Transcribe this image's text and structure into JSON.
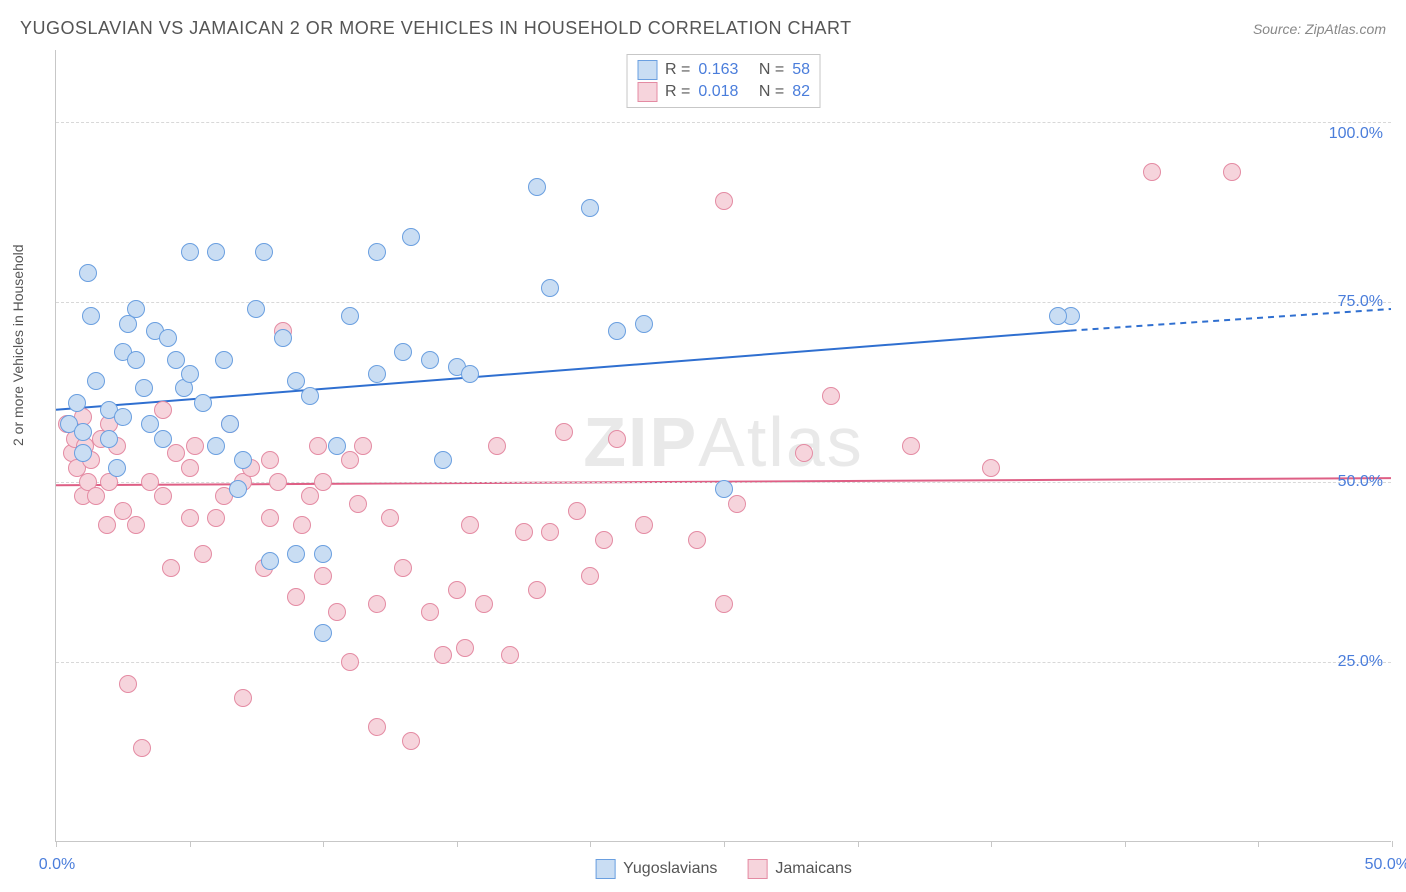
{
  "header": {
    "title": "YUGOSLAVIAN VS JAMAICAN 2 OR MORE VEHICLES IN HOUSEHOLD CORRELATION CHART",
    "source": "Source: ZipAtlas.com"
  },
  "watermark": {
    "zip": "ZIP",
    "atlas": "Atlas"
  },
  "chart": {
    "type": "scatter",
    "ylabel": "2 or more Vehicles in Household",
    "xlim": [
      0,
      50
    ],
    "ylim": [
      0,
      110
    ],
    "xtick_positions": [
      0,
      5,
      10,
      15,
      20,
      25,
      30,
      35,
      40,
      45,
      50
    ],
    "xtick_labels_shown": {
      "0": "0.0%",
      "50": "50.0%"
    },
    "ytick_positions": [
      25,
      50,
      75,
      100
    ],
    "ytick_labels": {
      "25": "25.0%",
      "50": "50.0%",
      "75": "75.0%",
      "100": "100.0%"
    },
    "grid_color": "#d8d8d8",
    "background_color": "#ffffff",
    "marker_radius": 9,
    "marker_border_width": 1.5,
    "series": [
      {
        "name": "Yugoslavians",
        "fill": "#c9ddf3",
        "stroke": "#6a9fe0",
        "r_label": "R  =",
        "r_value": "0.163",
        "n_label": "N  =",
        "n_value": "58",
        "trend": {
          "x1": 0,
          "y1": 60,
          "x2": 38,
          "y2": 71,
          "dash_to_x": 50,
          "dash_to_y": 74,
          "color": "#2f6fd0",
          "width": 2
        },
        "points": [
          [
            0.5,
            58
          ],
          [
            0.8,
            61
          ],
          [
            1,
            57
          ],
          [
            1,
            54
          ],
          [
            1.2,
            79
          ],
          [
            1.3,
            73
          ],
          [
            1.5,
            64
          ],
          [
            2,
            56
          ],
          [
            2,
            60
          ],
          [
            2.3,
            52
          ],
          [
            2.5,
            68
          ],
          [
            2.5,
            59
          ],
          [
            2.7,
            72
          ],
          [
            3,
            67
          ],
          [
            3,
            74
          ],
          [
            3.3,
            63
          ],
          [
            3.5,
            58
          ],
          [
            3.7,
            71
          ],
          [
            4,
            56
          ],
          [
            4.2,
            70
          ],
          [
            4.5,
            67
          ],
          [
            4.8,
            63
          ],
          [
            5,
            65
          ],
          [
            5,
            82
          ],
          [
            5.5,
            61
          ],
          [
            6,
            82
          ],
          [
            6,
            55
          ],
          [
            6.3,
            67
          ],
          [
            6.5,
            58
          ],
          [
            6.8,
            49
          ],
          [
            7,
            53
          ],
          [
            7.5,
            74
          ],
          [
            7.8,
            82
          ],
          [
            8,
            39
          ],
          [
            8.5,
            70
          ],
          [
            9,
            40
          ],
          [
            9,
            64
          ],
          [
            9.5,
            62
          ],
          [
            10,
            29
          ],
          [
            10,
            40
          ],
          [
            10.5,
            55
          ],
          [
            11,
            73
          ],
          [
            12,
            82
          ],
          [
            12,
            65
          ],
          [
            13,
            68
          ],
          [
            13.3,
            84
          ],
          [
            14,
            67
          ],
          [
            14.5,
            53
          ],
          [
            15,
            66
          ],
          [
            15.5,
            65
          ],
          [
            18,
            91
          ],
          [
            18.5,
            77
          ],
          [
            20,
            88
          ],
          [
            21,
            71
          ],
          [
            22,
            72
          ],
          [
            25,
            49
          ],
          [
            38,
            73
          ],
          [
            37.5,
            73
          ]
        ]
      },
      {
        "name": "Jamaicans",
        "fill": "#f6d4dc",
        "stroke": "#e48ba3",
        "r_label": "R  =",
        "r_value": "0.018",
        "n_label": "N  =",
        "n_value": "82",
        "trend": {
          "x1": 0,
          "y1": 49.5,
          "x2": 50,
          "y2": 50.5,
          "color": "#de5f85",
          "width": 2
        },
        "points": [
          [
            0.4,
            58
          ],
          [
            0.6,
            54
          ],
          [
            0.7,
            56
          ],
          [
            0.8,
            52
          ],
          [
            1,
            59
          ],
          [
            1,
            48
          ],
          [
            1.1,
            55
          ],
          [
            1.2,
            50
          ],
          [
            1.3,
            53
          ],
          [
            1.5,
            48
          ],
          [
            1.7,
            56
          ],
          [
            1.9,
            44
          ],
          [
            2,
            58
          ],
          [
            2,
            50
          ],
          [
            2.3,
            55
          ],
          [
            2.5,
            46
          ],
          [
            2.7,
            22
          ],
          [
            3,
            44
          ],
          [
            3.2,
            13
          ],
          [
            3.5,
            50
          ],
          [
            4,
            60
          ],
          [
            4,
            48
          ],
          [
            4.3,
            38
          ],
          [
            4.5,
            54
          ],
          [
            5,
            45
          ],
          [
            5,
            52
          ],
          [
            5.2,
            55
          ],
          [
            5.5,
            40
          ],
          [
            6,
            45
          ],
          [
            6.3,
            48
          ],
          [
            6.5,
            58
          ],
          [
            7,
            50
          ],
          [
            7,
            20
          ],
          [
            7.3,
            52
          ],
          [
            7.8,
            38
          ],
          [
            8,
            53
          ],
          [
            8,
            45
          ],
          [
            8.3,
            50
          ],
          [
            8.5,
            71
          ],
          [
            9,
            34
          ],
          [
            9.2,
            44
          ],
          [
            9.5,
            48
          ],
          [
            9.8,
            55
          ],
          [
            10,
            37
          ],
          [
            10,
            50
          ],
          [
            10.5,
            32
          ],
          [
            11,
            53
          ],
          [
            11,
            25
          ],
          [
            11.3,
            47
          ],
          [
            11.5,
            55
          ],
          [
            12,
            16
          ],
          [
            12,
            33
          ],
          [
            12.5,
            45
          ],
          [
            13,
            38
          ],
          [
            13.3,
            14
          ],
          [
            14,
            32
          ],
          [
            14.5,
            26
          ],
          [
            15,
            35
          ],
          [
            15.3,
            27
          ],
          [
            15.5,
            44
          ],
          [
            16,
            33
          ],
          [
            16.5,
            55
          ],
          [
            17,
            26
          ],
          [
            17.5,
            43
          ],
          [
            18,
            35
          ],
          [
            18.5,
            43
          ],
          [
            19,
            57
          ],
          [
            19.5,
            46
          ],
          [
            20,
            37
          ],
          [
            20.5,
            42
          ],
          [
            21,
            56
          ],
          [
            22,
            44
          ],
          [
            24,
            42
          ],
          [
            25,
            33
          ],
          [
            25,
            89
          ],
          [
            25.5,
            47
          ],
          [
            28,
            54
          ],
          [
            29,
            62
          ],
          [
            32,
            55
          ],
          [
            35,
            52
          ],
          [
            44,
            93
          ],
          [
            41,
            93
          ]
        ]
      }
    ]
  }
}
